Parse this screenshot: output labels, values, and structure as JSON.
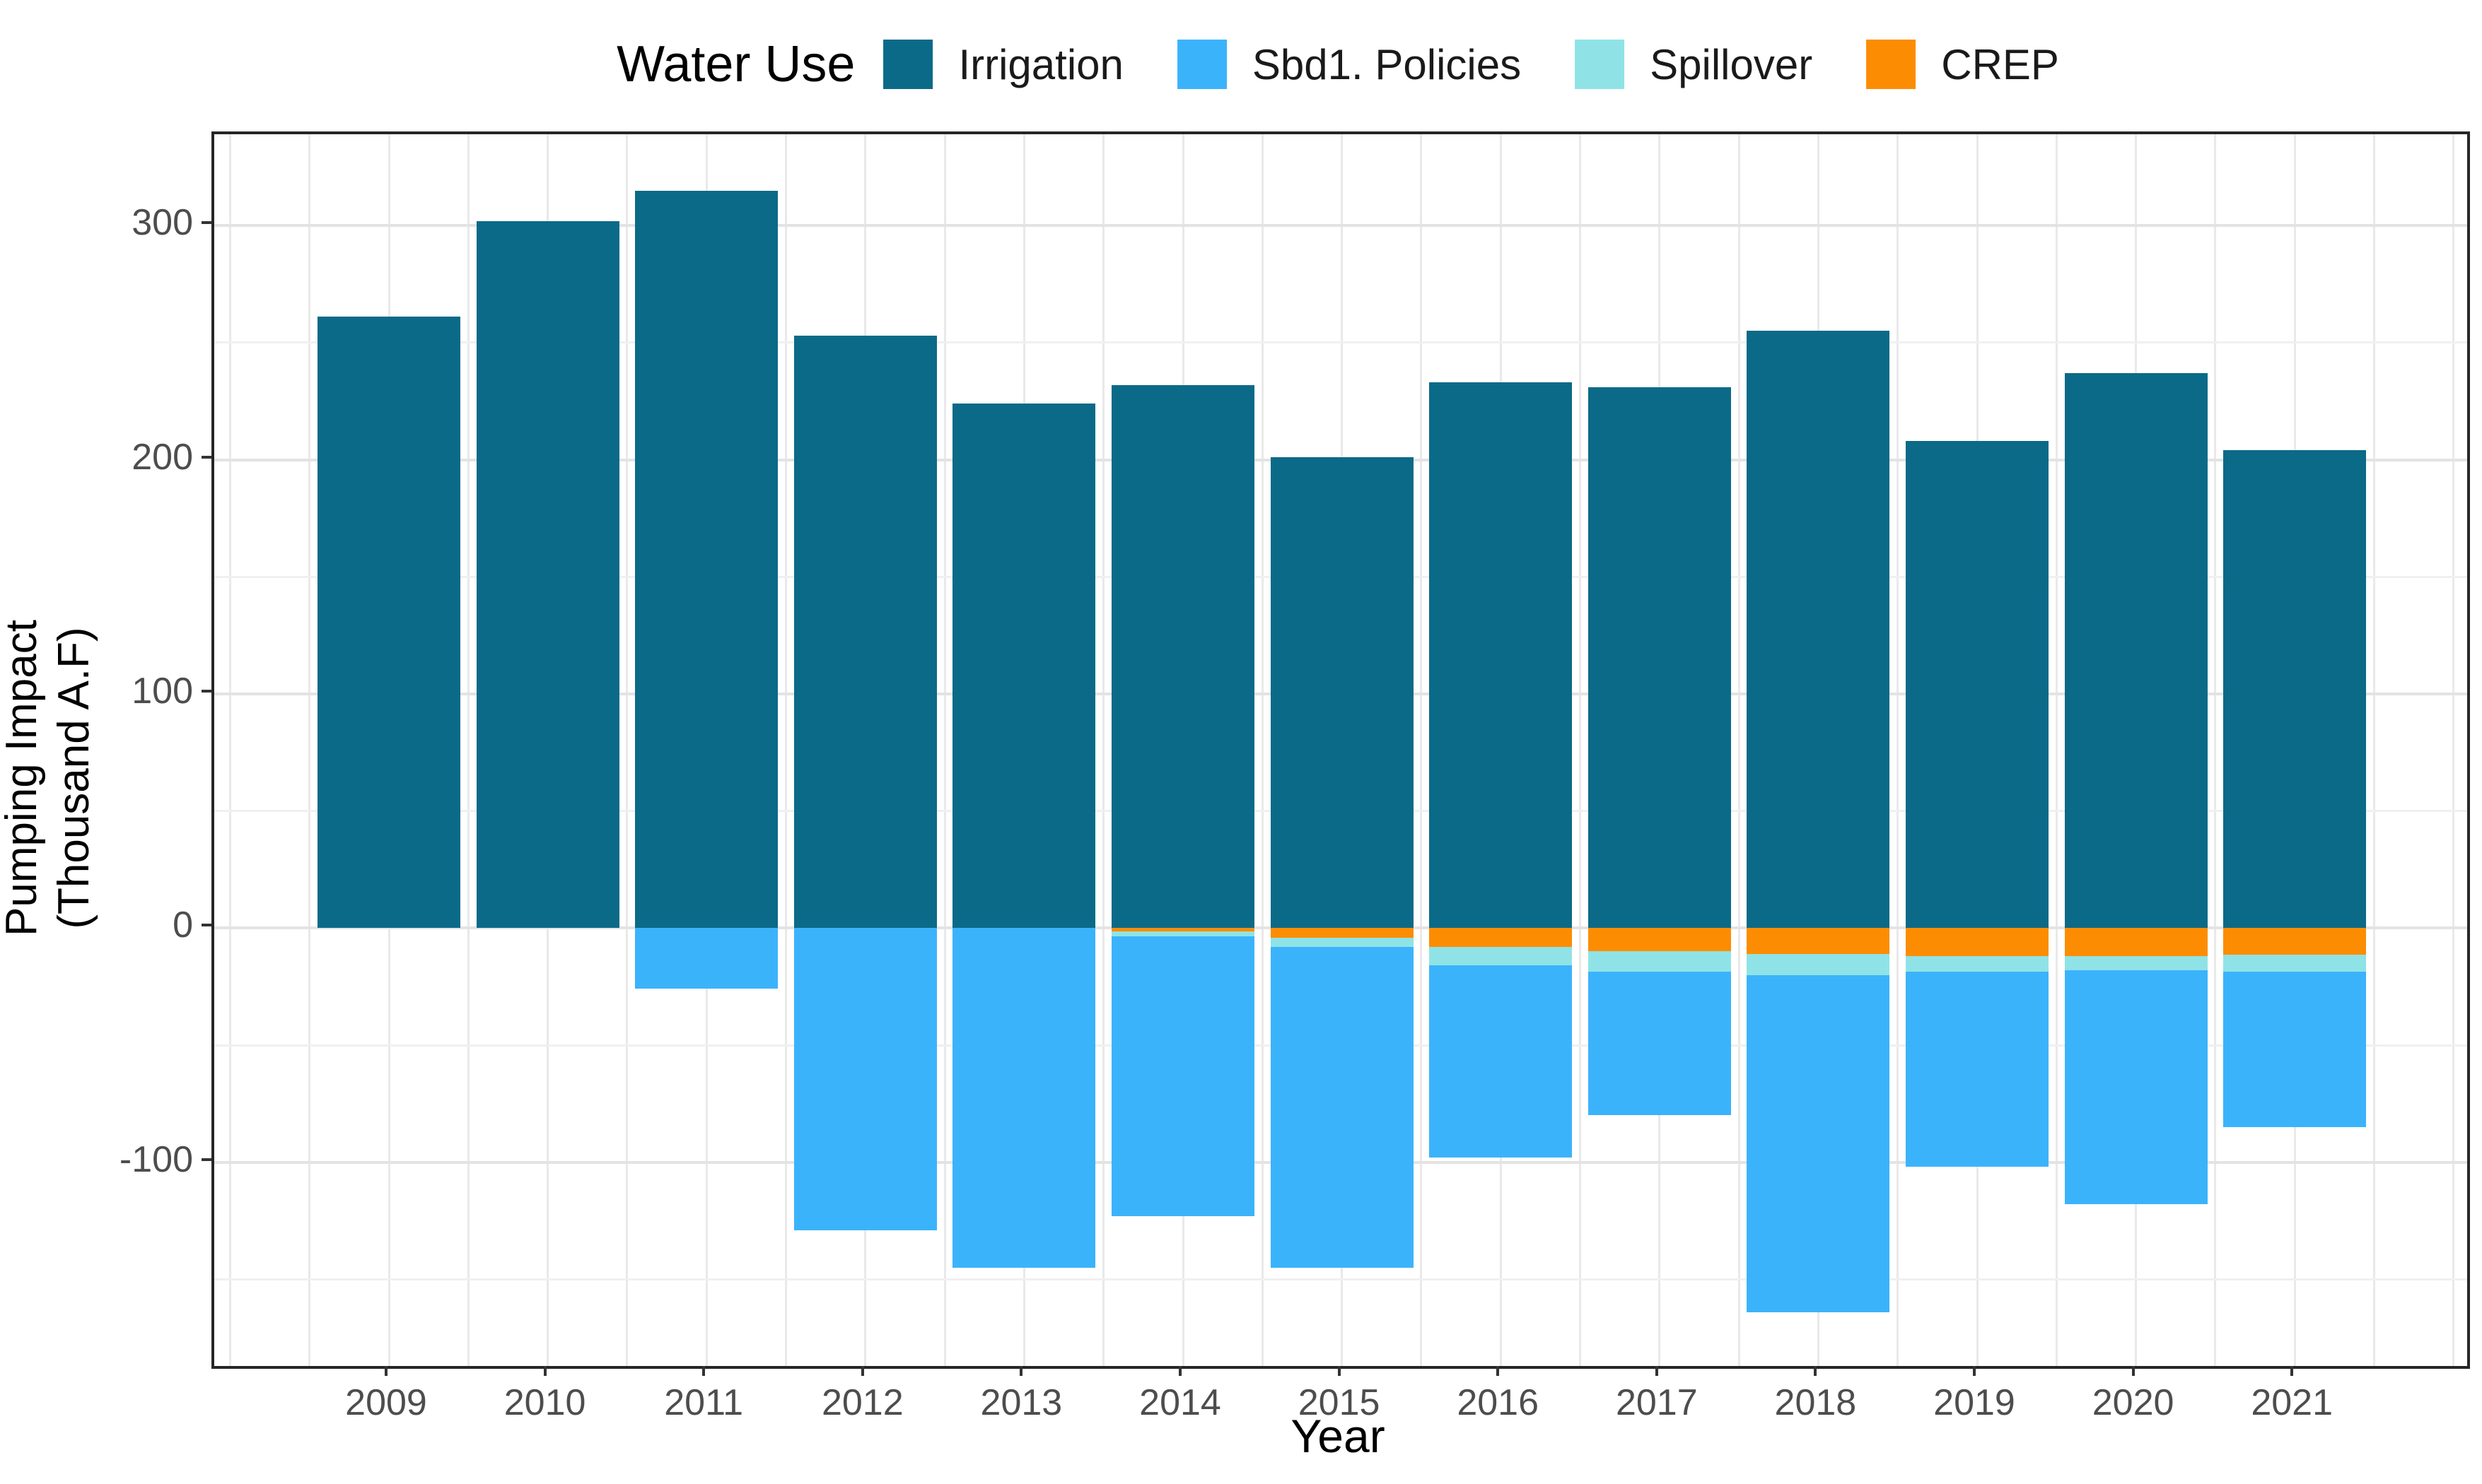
{
  "legend": {
    "title": "Water Use",
    "items": [
      {
        "label": "Irrigation",
        "color": "#0B6A88"
      },
      {
        "label": "Sbd1. Policies",
        "color": "#3BB3FB"
      },
      {
        "label": "Spillover",
        "color": "#8FE3E6"
      },
      {
        "label": "CREP",
        "color": "#FC8D03"
      }
    ]
  },
  "axes": {
    "x_title": "Year",
    "y_title_lines": [
      "Pumping Impact",
      "(Thousand A.F)"
    ],
    "y_tick_labels": [
      "300",
      "200",
      "100",
      "0",
      "-100"
    ],
    "tick_label_color": "#4d4d4d",
    "axis_line_color": "#262626"
  },
  "chart_data": {
    "type": "bar",
    "stacked": true,
    "legend_title": "Water Use",
    "legend_position": "top",
    "xlabel": "Year",
    "ylabel": "Pumping Impact (Thousand A.F)",
    "categories": [
      "2009",
      "2010",
      "2011",
      "2012",
      "2013",
      "2014",
      "2015",
      "2016",
      "2017",
      "2018",
      "2019",
      "2020",
      "2021"
    ],
    "series": [
      {
        "name": "Irrigation",
        "color": "#0B6A88",
        "values": [
          261,
          302,
          315,
          253,
          224,
          232,
          201,
          233,
          231,
          255,
          208,
          237,
          204
        ]
      },
      {
        "name": "Sbd1. Policies",
        "color": "#3BB3FB",
        "values": [
          0,
          0,
          -26,
          -129,
          -145,
          -119.5,
          -137,
          -82,
          -61.5,
          -144,
          -83.5,
          -100,
          -66.5
        ]
      },
      {
        "name": "Spillover",
        "color": "#8FE3E6",
        "values": [
          0,
          0,
          0,
          0,
          0,
          -2,
          -4,
          -8,
          -8.5,
          -9,
          -6.5,
          -6,
          -7
        ]
      },
      {
        "name": "CREP",
        "color": "#FC8D03",
        "values": [
          0,
          0,
          0,
          0,
          0,
          -1.5,
          -4,
          -8,
          -10,
          -11,
          -12,
          -12,
          -11.5
        ]
      }
    ],
    "stack_totals_negative": [
      0,
      0,
      -26,
      -129,
      -145,
      -123,
      -145,
      -98,
      -80,
      -164,
      -102,
      -118,
      -85
    ],
    "neg_stack_order": [
      "CREP",
      "Spillover",
      "Sbd1. Policies"
    ],
    "y_ticks_major": [
      300,
      200,
      100,
      0,
      -100
    ],
    "y_ticks_minor": [
      250,
      150,
      50,
      -50,
      -150
    ],
    "ylim": [
      -187,
      339
    ],
    "grid": true,
    "grid_major_color": "#e3e3e3",
    "grid_minor_color": "#f0f0f0",
    "bar_width_fraction": 0.9
  }
}
